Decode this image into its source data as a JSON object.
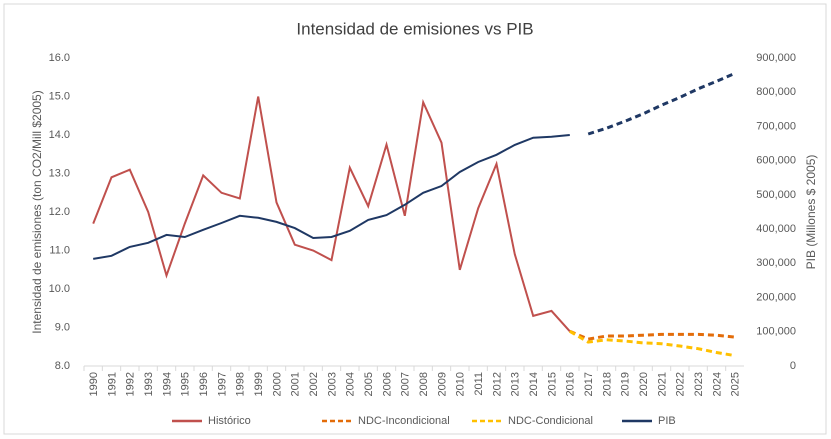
{
  "chart_data": {
    "type": "line",
    "title": "Intensidad de emisiones  vs PIB",
    "y_label": "Intensidad de emisiones (ton CO2/Mill $2005)",
    "y2_label": "PIB (Millones $ 2005)",
    "categories": [
      "1990",
      "1991",
      "1992",
      "1993",
      "1994",
      "1995",
      "1996",
      "1997",
      "1998",
      "1999",
      "2000",
      "2001",
      "2002",
      "2003",
      "2004",
      "2005",
      "2006",
      "2007",
      "2008",
      "2009",
      "2010",
      "2011",
      "2012",
      "2013",
      "2014",
      "2015",
      "2016",
      "2017",
      "2018",
      "2019",
      "2020",
      "2021",
      "2022",
      "2023",
      "2024",
      "2025"
    ],
    "series": [
      {
        "name": "Histórico",
        "color": "#c0504d",
        "dash": false,
        "values": [
          11.7,
          12.9,
          13.1,
          12.0,
          10.35,
          11.7,
          12.95,
          12.5,
          12.35,
          15.0,
          12.25,
          11.15,
          11.0,
          10.75,
          13.15,
          12.15,
          13.75,
          11.9,
          14.85,
          13.8,
          10.5,
          12.1,
          13.25,
          10.9,
          9.3,
          9.43,
          8.9,
          null,
          null,
          null,
          null,
          null,
          null,
          null,
          null,
          null
        ]
      },
      {
        "name": "NDC-Incondicional",
        "color": "#e36c09",
        "dash": true,
        "values": [
          null,
          null,
          null,
          null,
          null,
          null,
          null,
          null,
          null,
          null,
          null,
          null,
          null,
          null,
          null,
          null,
          null,
          null,
          null,
          null,
          null,
          null,
          null,
          null,
          null,
          null,
          8.9,
          8.7,
          8.78,
          8.78,
          8.8,
          8.82,
          8.82,
          8.82,
          8.8,
          8.75
        ]
      },
      {
        "name": "NDC-Condicional",
        "color": "#ffc000",
        "dash": true,
        "values": [
          null,
          null,
          null,
          null,
          null,
          null,
          null,
          null,
          null,
          null,
          null,
          null,
          null,
          null,
          null,
          null,
          null,
          null,
          null,
          null,
          null,
          null,
          null,
          null,
          null,
          null,
          8.9,
          8.62,
          8.68,
          8.65,
          8.6,
          8.58,
          8.52,
          8.45,
          8.35,
          8.27
        ]
      },
      {
        "name": "PIB",
        "color": "#1f3864",
        "axis": "y2",
        "values": [
          313000,
          322000,
          348000,
          360000,
          383000,
          377000,
          398000,
          418000,
          439000,
          433000,
          421000,
          403000,
          374000,
          377000,
          395000,
          427000,
          441000,
          471000,
          506000,
          526000,
          567000,
          596000,
          617000,
          646000,
          667000,
          670000,
          675000,
          678000,
          695000,
          715000,
          737000,
          762000,
          785000,
          810000,
          832000,
          855000
        ]
      }
    ],
    "ylim": [
      8,
      16
    ],
    "yticks": [
      {
        "value": 8,
        "label": "8.0"
      },
      {
        "value": 9,
        "label": "9.0"
      },
      {
        "value": 10,
        "label": "10.0"
      },
      {
        "value": 11,
        "label": "11.0"
      },
      {
        "value": 12,
        "label": "12.0"
      },
      {
        "value": 13,
        "label": "13.0"
      },
      {
        "value": 14,
        "label": "14.0"
      },
      {
        "value": 15,
        "label": "15.0"
      },
      {
        "value": 16,
        "label": "16.0"
      }
    ],
    "y2lim": [
      0,
      900000
    ],
    "y2ticks": [
      0,
      {
        "value": 100000,
        "label": "100,000"
      },
      {
        "value": 200000,
        "label": "200,000"
      },
      {
        "value": 300000,
        "label": "300,000"
      },
      {
        "value": 400000,
        "label": "400,000"
      },
      {
        "value": 500000,
        "label": "500,000"
      },
      {
        "value": 600000,
        "label": "600,000"
      },
      {
        "value": 700000,
        "label": "700,000"
      },
      {
        "value": 800000,
        "label": "800,000"
      },
      {
        "value": 900000,
        "label": "900,000"
      }
    ],
    "grid": false,
    "legend": "bottom"
  }
}
